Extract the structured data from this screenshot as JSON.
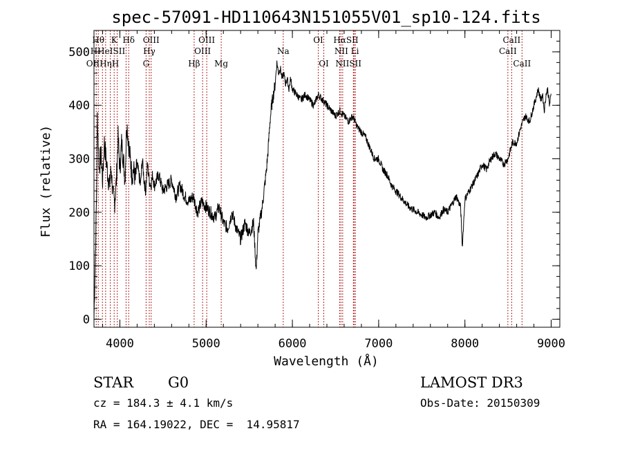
{
  "chart_data": {
    "type": "line",
    "title": "spec-57091-HD110643N151055V01_sp10-124.fits",
    "xlabel": "Wavelength (Å)",
    "ylabel": "Flux (relative)",
    "xlim": [
      3700,
      9100
    ],
    "ylim": [
      -15,
      540
    ],
    "x_ticks": [
      4000,
      5000,
      6000,
      7000,
      8000,
      9000
    ],
    "y_ticks": [
      0,
      100,
      200,
      300,
      400,
      500
    ],
    "grid": false,
    "series": [
      {
        "x": [
          3700,
          3710,
          3720,
          3730,
          3740,
          3750,
          3760,
          3780,
          3800,
          3820,
          3840,
          3860,
          3880,
          3900,
          3920,
          3940,
          3960,
          3980,
          4000,
          4020,
          4040,
          4060,
          4080,
          4100,
          4120,
          4140,
          4160,
          4180,
          4200,
          4220,
          4240,
          4260,
          4280,
          4300,
          4320,
          4340,
          4360,
          4380,
          4400,
          4450,
          4500,
          4550,
          4600,
          4650,
          4700,
          4750,
          4800,
          4850,
          4900,
          4950,
          5000,
          5050,
          5100,
          5150,
          5200,
          5250,
          5300,
          5350,
          5400,
          5450,
          5500,
          5550,
          5580,
          5600,
          5650,
          5700,
          5720,
          5740,
          5760,
          5780,
          5800,
          5820,
          5840,
          5860,
          5880,
          5900,
          5920,
          5940,
          5960,
          5980,
          6000,
          6050,
          6100,
          6150,
          6200,
          6250,
          6300,
          6350,
          6400,
          6450,
          6500,
          6550,
          6600,
          6650,
          6700,
          6750,
          6800,
          6850,
          6900,
          6950,
          7000,
          7050,
          7100,
          7150,
          7200,
          7250,
          7300,
          7350,
          7400,
          7450,
          7500,
          7550,
          7600,
          7650,
          7700,
          7750,
          7800,
          7850,
          7900,
          7950,
          7970,
          8000,
          8050,
          8100,
          8150,
          8200,
          8250,
          8300,
          8350,
          8400,
          8450,
          8500,
          8550,
          8600,
          8650,
          8700,
          8750,
          8800,
          8850,
          8880,
          8900,
          8920,
          8940,
          8960,
          8980,
          9000
        ],
        "y": [
          0,
          80,
          150,
          230,
          380,
          330,
          280,
          310,
          260,
          330,
          300,
          270,
          250,
          280,
          230,
          220,
          260,
          340,
          280,
          330,
          300,
          260,
          370,
          330,
          300,
          270,
          280,
          260,
          290,
          270,
          250,
          300,
          260,
          240,
          290,
          260,
          250,
          270,
          250,
          270,
          240,
          250,
          260,
          230,
          250,
          230,
          220,
          230,
          200,
          220,
          210,
          200,
          190,
          210,
          180,
          170,
          200,
          170,
          150,
          180,
          160,
          180,
          90,
          160,
          210,
          280,
          320,
          370,
          400,
          420,
          440,
          480,
          460,
          470,
          450,
          460,
          440,
          450,
          430,
          450,
          430,
          420,
          410,
          420,
          410,
          400,
          420,
          410,
          400,
          390,
          380,
          390,
          380,
          370,
          380,
          360,
          350,
          340,
          320,
          300,
          300,
          280,
          270,
          250,
          240,
          230,
          220,
          210,
          205,
          200,
          195,
          190,
          195,
          200,
          190,
          205,
          200,
          215,
          230,
          210,
          135,
          225,
          240,
          255,
          270,
          290,
          280,
          300,
          310,
          300,
          290,
          300,
          330,
          330,
          360,
          380,
          370,
          400,
          430,
          410,
          420,
          390,
          420,
          430,
          400,
          420
        ]
      }
    ],
    "lines": [
      {
        "x": 3726,
        "labels": [
          "OII"
        ]
      },
      {
        "x": 3750,
        "labels": [
          "Hθ"
        ]
      },
      {
        "x": 3798,
        "labels": [
          "Hη"
        ]
      },
      {
        "x": 3835,
        "labels": [
          "Hε"
        ]
      },
      {
        "x": 3889,
        "labels": [
          "Hε"
        ]
      },
      {
        "x": 3934,
        "labels": [
          "K"
        ]
      },
      {
        "x": 3970,
        "labels": [
          "H"
        ]
      },
      {
        "x": 4072,
        "labels": [
          "SII"
        ]
      },
      {
        "x": 4102,
        "labels": [
          "Hδ"
        ]
      },
      {
        "x": 4304,
        "labels": [
          "G"
        ]
      },
      {
        "x": 4341,
        "labels": [
          "Hγ"
        ]
      },
      {
        "x": 4363,
        "labels": [
          "OIII"
        ]
      },
      {
        "x": 4861,
        "labels": [
          "Hβ"
        ]
      },
      {
        "x": 4959,
        "labels": [
          "OIII"
        ]
      },
      {
        "x": 5007,
        "labels": [
          "OIII"
        ]
      },
      {
        "x": 5175,
        "labels": [
          "Mg"
        ]
      },
      {
        "x": 5894,
        "labels": [
          "Na"
        ]
      },
      {
        "x": 6300,
        "labels": [
          "OI"
        ]
      },
      {
        "x": 6364,
        "labels": [
          "OI"
        ]
      },
      {
        "x": 6548,
        "labels": [
          "NII"
        ]
      },
      {
        "x": 6563,
        "labels": [
          "Hα"
        ]
      },
      {
        "x": 6583,
        "labels": [
          "NII"
        ]
      },
      {
        "x": 6707,
        "labels": [
          "Li"
        ]
      },
      {
        "x": 6716,
        "labels": [
          "SII"
        ]
      },
      {
        "x": 6731,
        "labels": [
          "SII"
        ]
      },
      {
        "x": 8498,
        "labels": [
          "CaII"
        ]
      },
      {
        "x": 8542,
        "labels": [
          "CaII"
        ]
      },
      {
        "x": 8662,
        "labels": [
          "CaII"
        ]
      }
    ],
    "line_label_text": [
      {
        "text": "Hθ",
        "x": 3750,
        "row": 1
      },
      {
        "text": "K",
        "x": 3934,
        "row": 1
      },
      {
        "text": "Hδ",
        "x": 4102,
        "row": 1
      },
      {
        "text": "OIII",
        "x": 4363,
        "row": 1
      },
      {
        "text": "OIII",
        "x": 5007,
        "row": 1
      },
      {
        "text": "OI",
        "x": 6300,
        "row": 1
      },
      {
        "text": "HαSII",
        "x": 6620,
        "row": 1
      },
      {
        "text": "CaII",
        "x": 8542,
        "row": 1
      },
      {
        "text": "HHeISII",
        "x": 3860,
        "row": 2
      },
      {
        "text": "Hγ",
        "x": 4341,
        "row": 2
      },
      {
        "text": "OIII",
        "x": 4959,
        "row": 2
      },
      {
        "text": "Na",
        "x": 5894,
        "row": 2
      },
      {
        "text": "NII Li",
        "x": 6630,
        "row": 2
      },
      {
        "text": "CaII",
        "x": 8498,
        "row": 2
      },
      {
        "text": "OIIHηH",
        "x": 3800,
        "row": 3
      },
      {
        "text": "G",
        "x": 4304,
        "row": 3
      },
      {
        "text": "Hβ",
        "x": 4861,
        "row": 3
      },
      {
        "text": "Mg",
        "x": 5175,
        "row": 3
      },
      {
        "text": "OI",
        "x": 6364,
        "row": 3
      },
      {
        "text": "NIISII",
        "x": 6650,
        "row": 3
      },
      {
        "text": "CaII",
        "x": 8662,
        "row": 3
      }
    ]
  },
  "info": {
    "object_class": "STAR",
    "subclass": "G0",
    "survey": "LAMOST DR3",
    "redshift": "cz = 184.3 ± 4.1 km/s",
    "obs_date": "Obs-Date: 20150309",
    "coords": "RA = 164.19022, DEC =  14.95817"
  },
  "colors": {
    "spectrum": "#000000",
    "lines": "#b22222",
    "background": "#ffffff"
  }
}
